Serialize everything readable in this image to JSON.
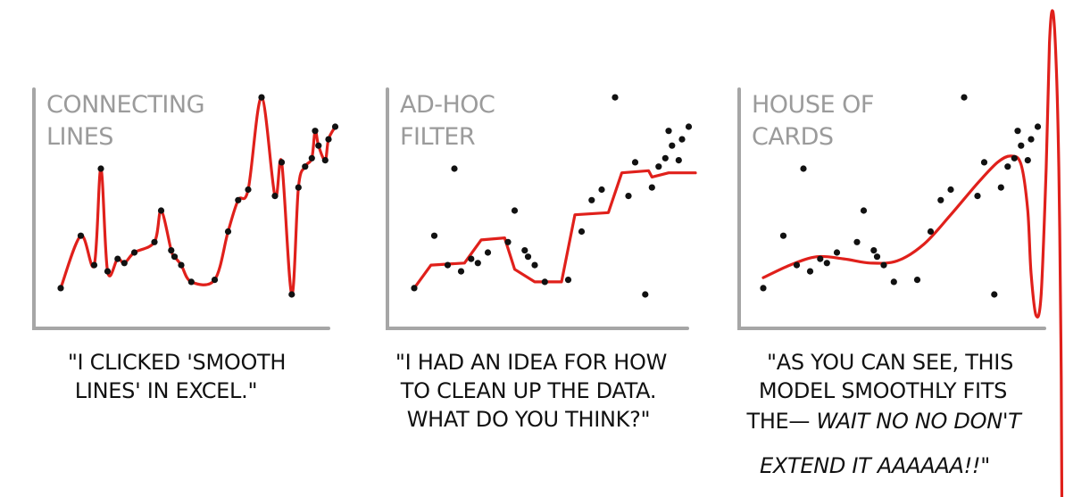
{
  "colors": {
    "axis": "#a6a6a6",
    "title": "#9b9b9b",
    "curve": "#e0201b",
    "dot": "#111111",
    "caption": "#111111"
  },
  "panels": [
    {
      "title_lines": [
        "CONNECTING",
        "LINES"
      ],
      "caption_lines": [
        "\"I CLICKED 'SMOOTH",
        "LINES' IN EXCEL.\""
      ],
      "chart_data": {
        "type": "scatter",
        "overlay": "smooth line through every point",
        "x": [
          0.0,
          0.06,
          0.1,
          0.12,
          0.14,
          0.17,
          0.19,
          0.22,
          0.28,
          0.3,
          0.33,
          0.34,
          0.36,
          0.39,
          0.46,
          0.5,
          0.53,
          0.56,
          0.6,
          0.64,
          0.66,
          0.69,
          0.71,
          0.73,
          0.75,
          0.76,
          0.77,
          0.79,
          0.8,
          0.82
        ],
        "y": [
          0.03,
          0.28,
          0.14,
          0.6,
          0.11,
          0.17,
          0.15,
          0.2,
          0.25,
          0.4,
          0.21,
          0.18,
          0.14,
          0.06,
          0.07,
          0.3,
          0.45,
          0.5,
          0.94,
          0.47,
          0.63,
          0.0,
          0.51,
          0.61,
          0.65,
          0.78,
          0.71,
          0.64,
          0.74,
          0.8
        ]
      }
    },
    {
      "title_lines": [
        "AD-HOC",
        "FILTER"
      ],
      "caption_lines": [
        "\"I HAD AN IDEA FOR HOW",
        "TO CLEAN UP THE DATA.",
        "WHAT DO YOU THINK?\""
      ],
      "chart_data": {
        "type": "scatter",
        "overlay": "step-like filtered line",
        "x": [
          0.0,
          0.06,
          0.1,
          0.12,
          0.14,
          0.17,
          0.19,
          0.22,
          0.28,
          0.3,
          0.33,
          0.34,
          0.36,
          0.39,
          0.46,
          0.5,
          0.53,
          0.56,
          0.6,
          0.64,
          0.66,
          0.69,
          0.71,
          0.73,
          0.75,
          0.76,
          0.77,
          0.79,
          0.8,
          0.82
        ],
        "y": [
          0.03,
          0.28,
          0.14,
          0.6,
          0.11,
          0.17,
          0.15,
          0.2,
          0.25,
          0.4,
          0.21,
          0.18,
          0.14,
          0.06,
          0.07,
          0.3,
          0.45,
          0.5,
          0.94,
          0.47,
          0.63,
          0.0,
          0.51,
          0.61,
          0.65,
          0.78,
          0.71,
          0.64,
          0.74,
          0.8
        ]
      }
    },
    {
      "title_lines": [
        "HOUSE OF",
        "CARDS"
      ],
      "caption_lines": [
        "\"AS YOU CAN SEE, THIS",
        "MODEL SMOOTHLY FITS"
      ],
      "caption_line3": {
        "plain": "THE— ",
        "italic": "WAIT NO NO DON'T"
      },
      "caption_line4": {
        "italic": "EXTEND IT AAAAAA!!",
        "plain": "\""
      },
      "chart_data": {
        "type": "scatter",
        "overlay": "high-degree polynomial fit that shoots off the chart",
        "x": [
          0.0,
          0.06,
          0.1,
          0.12,
          0.14,
          0.17,
          0.19,
          0.22,
          0.28,
          0.3,
          0.33,
          0.34,
          0.36,
          0.39,
          0.46,
          0.5,
          0.53,
          0.56,
          0.6,
          0.64,
          0.66,
          0.69,
          0.71,
          0.73,
          0.75,
          0.76,
          0.77,
          0.79,
          0.8,
          0.82
        ],
        "y": [
          0.03,
          0.28,
          0.14,
          0.6,
          0.11,
          0.17,
          0.15,
          0.2,
          0.25,
          0.4,
          0.21,
          0.18,
          0.14,
          0.06,
          0.07,
          0.3,
          0.45,
          0.5,
          0.94,
          0.47,
          0.63,
          0.0,
          0.51,
          0.61,
          0.65,
          0.78,
          0.71,
          0.64,
          0.74,
          0.8
        ]
      }
    }
  ]
}
